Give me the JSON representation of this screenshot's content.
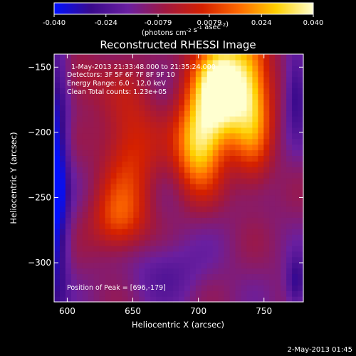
{
  "chart_data": {
    "type": "heatmap",
    "title": "Reconstructed RHESSI Image",
    "xlabel": "Heliocentric X (arcsec)",
    "ylabel": "Heliocentric Y (arcsec)",
    "xlim": [
      590,
      780
    ],
    "ylim": [
      -330,
      -140
    ],
    "x_ticks": [
      600,
      650,
      700,
      750
    ],
    "y_ticks": [
      -150,
      -200,
      -250,
      -300
    ],
    "colorbar": {
      "min": -0.04,
      "max": 0.04,
      "ticks": [
        "-0.040",
        "-0.024",
        "-0.0079",
        "0.0079",
        "0.024",
        "0.040"
      ],
      "unit_prefix": "(photons cm",
      "unit_e1": "-2",
      "unit_mid": " s",
      "unit_e2": "-1",
      "unit_mid2": " asec",
      "unit_e3": "-2",
      "unit_suffix": ")",
      "colors": [
        "#0010ff",
        "#3a0a8c",
        "#6a1fa0",
        "#a01840",
        "#d42000",
        "#ff6a00",
        "#ffd000",
        "#ffffd0"
      ]
    },
    "annotations": {
      "time": "1-May-2013 21:33:48.000 to 21:35:24.000",
      "detectors": "Detectors: 3F 5F 6F 7F 8F 9F 10",
      "energy": "Energy Range: 6.0 - 12.0 keV",
      "clean": "Clean    Total counts: 1.23e+05",
      "peak": "Position of Peak = [696,-179]"
    },
    "peak": [
      696,
      -179
    ],
    "footer_date": "2-May-2013 01:45"
  }
}
